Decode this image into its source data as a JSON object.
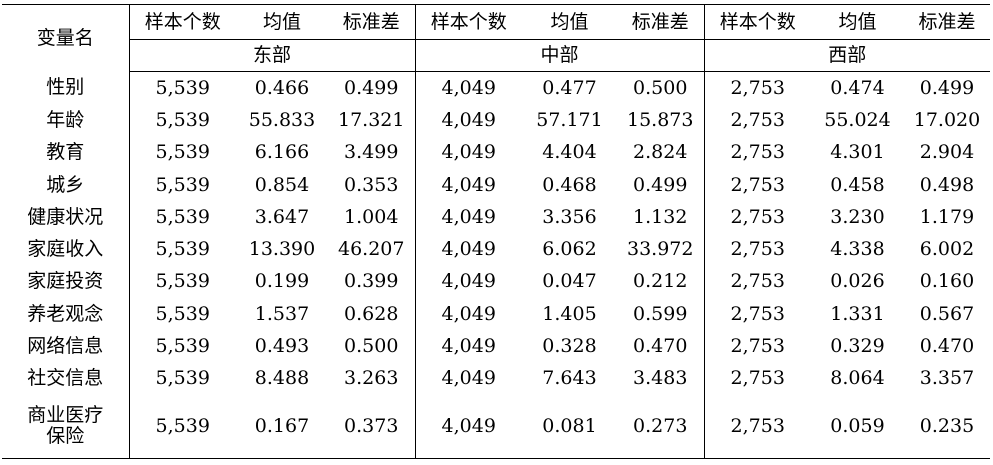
{
  "table": {
    "var_header": "变量名",
    "stat_headers": [
      "样本个数",
      "均值",
      "标准差"
    ],
    "regions": [
      "东部",
      "中部",
      "西部"
    ],
    "rows": [
      {
        "name": "性别",
        "values": [
          "5,539",
          "0.466",
          "0.499",
          "4,049",
          "0.477",
          "0.500",
          "2,753",
          "0.474",
          "0.499"
        ]
      },
      {
        "name": "年龄",
        "values": [
          "5,539",
          "55.833",
          "17.321",
          "4,049",
          "57.171",
          "15.873",
          "2,753",
          "55.024",
          "17.020"
        ]
      },
      {
        "name": "教育",
        "values": [
          "5,539",
          "6.166",
          "3.499",
          "4,049",
          "4.404",
          "2.824",
          "2,753",
          "4.301",
          "2.904"
        ]
      },
      {
        "name": "城乡",
        "values": [
          "5,539",
          "0.854",
          "0.353",
          "4,049",
          "0.468",
          "0.499",
          "2,753",
          "0.458",
          "0.498"
        ]
      },
      {
        "name": "健康状况",
        "values": [
          "5,539",
          "3.647",
          "1.004",
          "4,049",
          "3.356",
          "1.132",
          "2,753",
          "3.230",
          "1.179"
        ]
      },
      {
        "name": "家庭收入",
        "values": [
          "5,539",
          "13.390",
          "46.207",
          "4,049",
          "6.062",
          "33.972",
          "2,753",
          "4.338",
          "6.002"
        ]
      },
      {
        "name": "家庭投资",
        "values": [
          "5,539",
          "0.199",
          "0.399",
          "4,049",
          "0.047",
          "0.212",
          "2,753",
          "0.026",
          "0.160"
        ]
      },
      {
        "name": "养老观念",
        "values": [
          "5,539",
          "1.537",
          "0.628",
          "4,049",
          "1.405",
          "0.599",
          "2,753",
          "1.331",
          "0.567"
        ]
      },
      {
        "name": "网络信息",
        "values": [
          "5,539",
          "0.493",
          "0.500",
          "4,049",
          "0.328",
          "0.470",
          "2,753",
          "0.329",
          "0.470"
        ]
      },
      {
        "name": "社交信息",
        "values": [
          "5,539",
          "8.488",
          "3.263",
          "4,049",
          "7.643",
          "3.483",
          "2,753",
          "8.064",
          "3.357"
        ]
      },
      {
        "name": "商业医疗保险",
        "values": [
          "5,539",
          "0.167",
          "0.373",
          "4,049",
          "0.081",
          "0.273",
          "2,753",
          "0.059",
          "0.235"
        ]
      }
    ]
  }
}
